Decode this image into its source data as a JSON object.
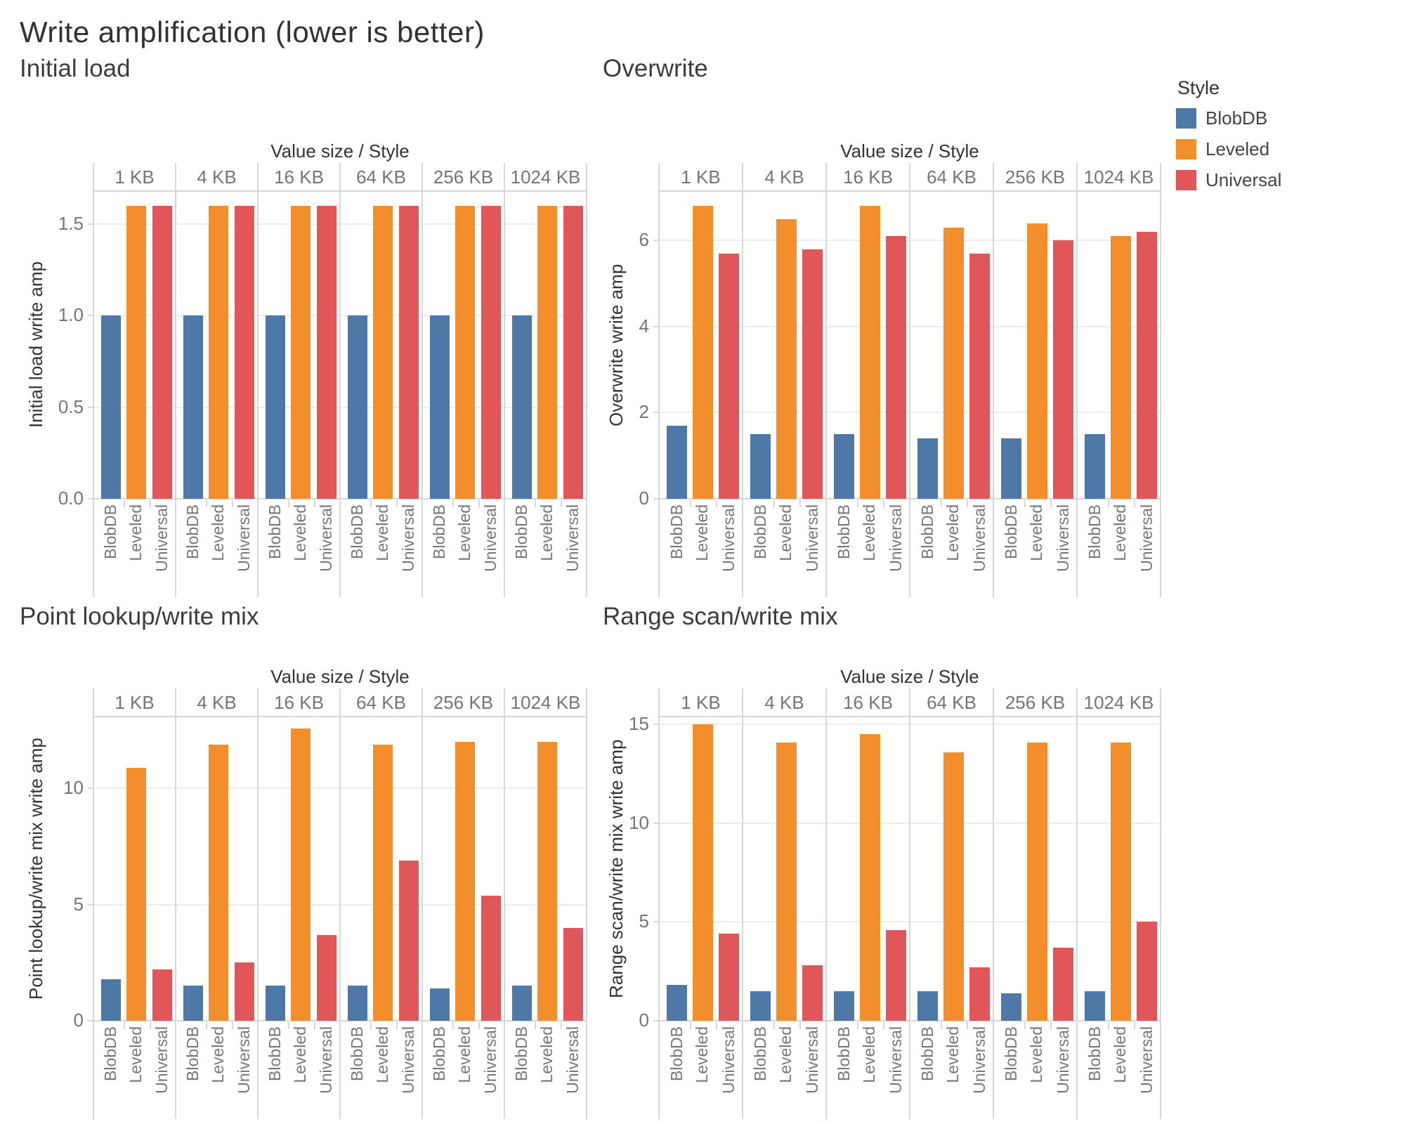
{
  "title": "Write amplification (lower is better)",
  "column_header_label": "Value size / Style",
  "value_sizes": [
    "1 KB",
    "4 KB",
    "16 KB",
    "64 KB",
    "256 KB",
    "1024 KB"
  ],
  "styles": [
    "BlobDB",
    "Leveled",
    "Universal"
  ],
  "colors": {
    "BlobDB": "#4e79a7",
    "Leveled": "#f28e2b",
    "Universal": "#e15759"
  },
  "legend": {
    "title": "Style",
    "items": [
      {
        "label": "BlobDB",
        "color": "#4e79a7"
      },
      {
        "label": "Leveled",
        "color": "#f28e2b"
      },
      {
        "label": "Universal",
        "color": "#e15759"
      }
    ]
  },
  "chart_data": [
    {
      "id": "initial_load",
      "type": "bar",
      "title": "Initial load",
      "ylabel": "Initial load write amp",
      "xlabel": "Value size / Style",
      "categories": [
        "1 KB",
        "4 KB",
        "16 KB",
        "64 KB",
        "256 KB",
        "1024 KB"
      ],
      "yticks": [
        0.0,
        0.5,
        1.0,
        1.5
      ],
      "ytick_labels": [
        "0.0",
        "0.5",
        "1.0",
        "1.5"
      ],
      "ylim": [
        0,
        1.68
      ],
      "grid": true,
      "legend_position": "top-right",
      "series": [
        {
          "name": "BlobDB",
          "values": [
            1.0,
            1.0,
            1.0,
            1.0,
            1.0,
            1.0
          ]
        },
        {
          "name": "Leveled",
          "values": [
            1.6,
            1.6,
            1.6,
            1.6,
            1.6,
            1.6
          ]
        },
        {
          "name": "Universal",
          "values": [
            1.6,
            1.6,
            1.6,
            1.6,
            1.6,
            1.6
          ]
        }
      ]
    },
    {
      "id": "overwrite",
      "type": "bar",
      "title": "Overwrite",
      "ylabel": "Overwrite write amp",
      "xlabel": "Value size / Style",
      "categories": [
        "1 KB",
        "4 KB",
        "16 KB",
        "64 KB",
        "256 KB",
        "1024 KB"
      ],
      "yticks": [
        0,
        2,
        4,
        6
      ],
      "ytick_labels": [
        "0",
        "2",
        "4",
        "6"
      ],
      "ylim": [
        0,
        7.15
      ],
      "grid": true,
      "legend_position": "top-right",
      "series": [
        {
          "name": "BlobDB",
          "values": [
            1.7,
            1.5,
            1.5,
            1.4,
            1.4,
            1.5
          ]
        },
        {
          "name": "Leveled",
          "values": [
            6.8,
            6.5,
            6.8,
            6.3,
            6.4,
            6.1
          ]
        },
        {
          "name": "Universal",
          "values": [
            5.7,
            5.8,
            6.1,
            5.7,
            6.0,
            6.2
          ]
        }
      ]
    },
    {
      "id": "point_lookup_write_mix",
      "type": "bar",
      "title": "Point lookup/write mix",
      "ylabel": "Point lookup/write mix write amp",
      "xlabel": "Value size / Style",
      "categories": [
        "1 KB",
        "4 KB",
        "16 KB",
        "64 KB",
        "256 KB",
        "1024 KB"
      ],
      "yticks": [
        0,
        5,
        10
      ],
      "ytick_labels": [
        "0",
        "5",
        "10"
      ],
      "ylim": [
        0,
        13.1
      ],
      "grid": true,
      "legend_position": "top-right",
      "series": [
        {
          "name": "BlobDB",
          "values": [
            1.8,
            1.5,
            1.5,
            1.5,
            1.4,
            1.5
          ]
        },
        {
          "name": "Leveled",
          "values": [
            10.9,
            11.9,
            12.6,
            11.9,
            12.0,
            12.0
          ]
        },
        {
          "name": "Universal",
          "values": [
            2.2,
            2.5,
            3.7,
            6.9,
            5.4,
            4.0
          ]
        }
      ]
    },
    {
      "id": "range_scan_write_mix",
      "type": "bar",
      "title": "Range scan/write mix",
      "ylabel": "Range scan/write mix write amp",
      "xlabel": "Value size / Style",
      "categories": [
        "1 KB",
        "4 KB",
        "16 KB",
        "64 KB",
        "256 KB",
        "1024 KB"
      ],
      "yticks": [
        0,
        5,
        10,
        15
      ],
      "ytick_labels": [
        "0",
        "5",
        "10",
        "15"
      ],
      "ylim": [
        0,
        15.4
      ],
      "grid": true,
      "legend_position": "top-right",
      "series": [
        {
          "name": "BlobDB",
          "values": [
            1.8,
            1.5,
            1.5,
            1.5,
            1.4,
            1.5
          ]
        },
        {
          "name": "Leveled",
          "values": [
            15.0,
            14.1,
            14.5,
            13.6,
            14.1,
            14.1
          ]
        },
        {
          "name": "Universal",
          "values": [
            4.4,
            2.8,
            4.6,
            2.7,
            3.7,
            5.0
          ]
        }
      ]
    }
  ]
}
